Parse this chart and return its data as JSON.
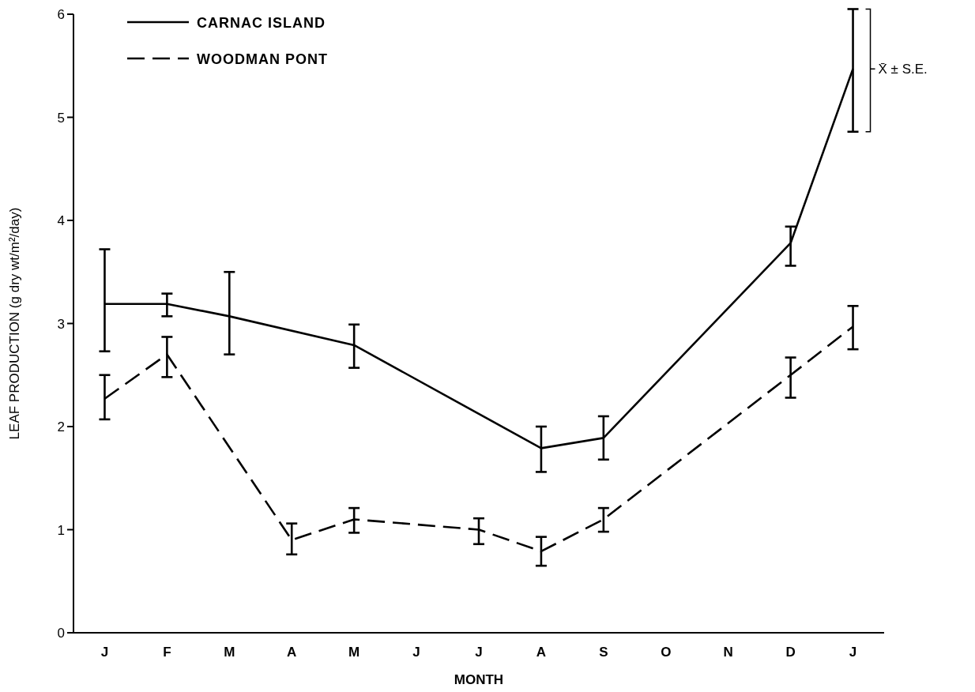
{
  "chart_data": {
    "type": "line",
    "xlabel": "MONTH",
    "ylabel": "LEAF PRODUCTION (g dry wt/m²/day)",
    "categories": [
      "J",
      "F",
      "M",
      "A",
      "M",
      "J",
      "J",
      "A",
      "S",
      "O",
      "N",
      "D",
      "J"
    ],
    "ylim": [
      0,
      6
    ],
    "yticks": [
      0,
      1,
      2,
      3,
      4,
      5,
      6
    ],
    "grid": false,
    "legend": "top left",
    "marker": "none",
    "annotations": [
      "X̄ ± S.E."
    ],
    "series": [
      {
        "name": "CARNAC ISLAND",
        "color": "#000000",
        "line_style": "solid",
        "values": [
          3.19,
          3.19,
          3.07,
          null,
          2.79,
          null,
          null,
          1.79,
          1.89,
          null,
          null,
          3.78,
          5.47
        ],
        "errors": [
          [
            2.73,
            3.72
          ],
          [
            3.07,
            3.29
          ],
          [
            2.7,
            3.5
          ],
          null,
          [
            2.57,
            2.99
          ],
          null,
          null,
          [
            1.56,
            2.0
          ],
          [
            1.68,
            2.1
          ],
          null,
          null,
          [
            3.56,
            3.94
          ],
          [
            4.86,
            6.05
          ]
        ]
      },
      {
        "name": "WOODMAN PONT",
        "color": "#000000",
        "line_style": "dashed",
        "values": [
          2.27,
          2.7,
          null,
          0.9,
          1.1,
          null,
          1.0,
          0.79,
          1.1,
          null,
          null,
          2.5,
          2.97
        ],
        "errors": [
          [
            2.07,
            2.5
          ],
          [
            2.48,
            2.87
          ],
          null,
          [
            0.76,
            1.06
          ],
          [
            0.97,
            1.21
          ],
          null,
          [
            0.86,
            1.11
          ],
          [
            0.65,
            0.93
          ],
          [
            0.98,
            1.21
          ],
          null,
          null,
          [
            2.28,
            2.67
          ],
          [
            2.75,
            3.17
          ]
        ]
      }
    ]
  }
}
